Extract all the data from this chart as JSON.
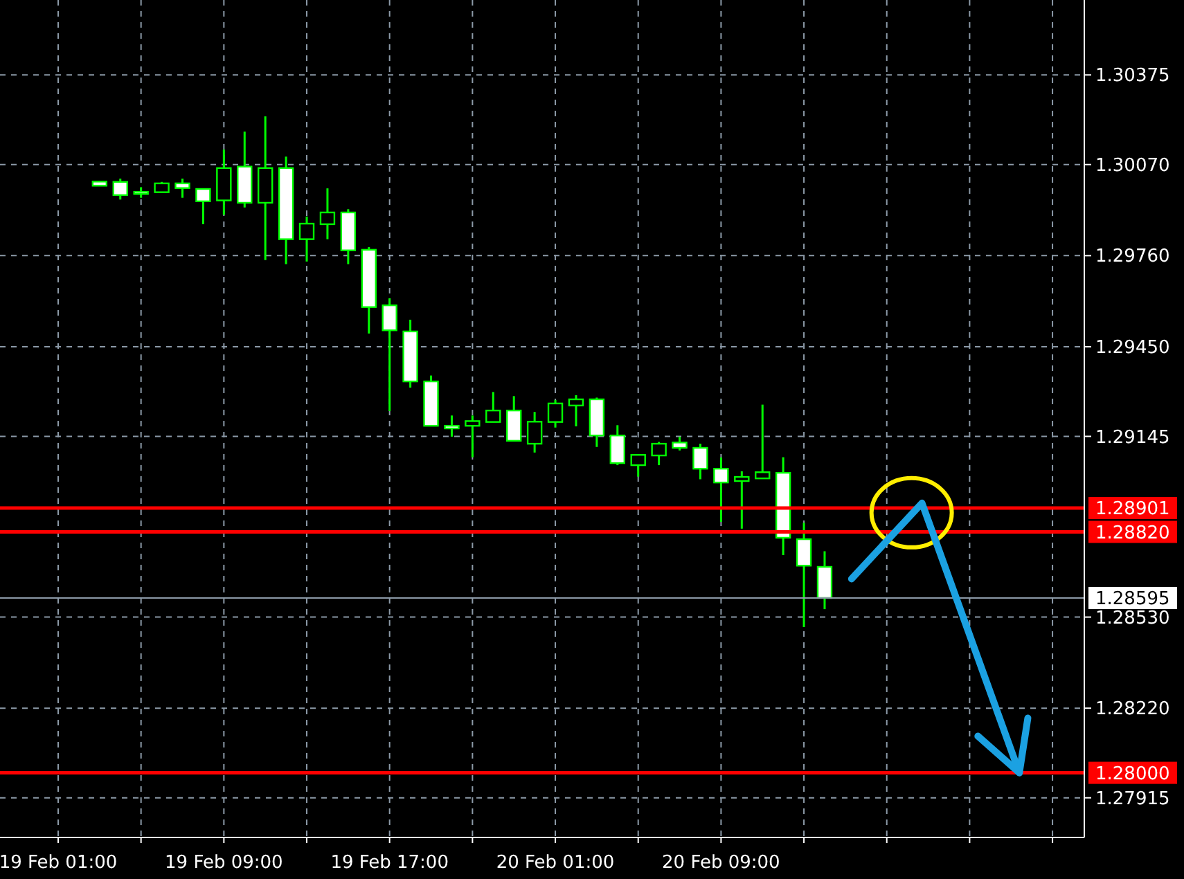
{
  "chart_data": {
    "type": "candlestick",
    "color": "#00ff00",
    "categories": [
      "19 Feb 01:00",
      null,
      null,
      null,
      null,
      null,
      null,
      null,
      "19 Feb 09:00",
      null,
      null,
      null,
      null,
      null,
      null,
      null,
      "19 Feb 17:00",
      null,
      null,
      null,
      null,
      null,
      null,
      null,
      "20 Feb 01:00",
      null,
      null,
      null,
      null,
      null,
      null,
      null,
      "20 Feb 09:00",
      null,
      null,
      null,
      null,
      null,
      null,
      null,
      null,
      null,
      null,
      null,
      null,
      null,
      null,
      null,
      null,
      null
    ],
    "ohlc": [
      null,
      null,
      [
        1.30012,
        1.30014,
        1.29998,
        1.29998
      ],
      [
        1.30011,
        1.30022,
        1.29951,
        1.29966
      ],
      [
        1.29977,
        1.29993,
        1.29957,
        1.29975
      ],
      [
        1.29976,
        1.30011,
        1.29976,
        1.30006
      ],
      [
        1.30006,
        1.30022,
        1.29957,
        1.2999
      ],
      [
        1.29987,
        1.29987,
        1.29867,
        1.29945
      ],
      [
        1.29948,
        1.30121,
        1.29899,
        1.30058
      ],
      [
        1.30063,
        1.30182,
        1.29924,
        1.2994
      ],
      [
        1.2994,
        1.30234,
        1.29745,
        1.30058
      ],
      [
        1.30058,
        1.30097,
        1.29731,
        1.29816
      ],
      [
        1.29816,
        1.29893,
        1.2974,
        1.29869
      ],
      [
        1.29867,
        1.29989,
        1.29816,
        1.29907
      ],
      [
        1.29907,
        1.29918,
        1.29731,
        1.29778
      ],
      [
        1.2978,
        1.29789,
        1.29495,
        1.29585
      ],
      [
        1.29591,
        1.29615,
        1.29231,
        1.29506
      ],
      [
        1.29502,
        1.29542,
        1.29311,
        1.29332
      ],
      [
        1.29332,
        1.29352,
        1.29181,
        1.29181
      ],
      [
        1.29181,
        1.29216,
        1.29144,
        1.29172
      ],
      [
        1.29181,
        1.29216,
        1.29074,
        1.29197
      ],
      [
        1.29194,
        1.29296,
        1.29194,
        1.29233
      ],
      [
        1.29233,
        1.29282,
        1.2913,
        1.2913
      ],
      [
        1.2912,
        1.29228,
        1.2909,
        1.29195
      ],
      [
        1.29194,
        1.29269,
        1.29175,
        1.29257
      ],
      [
        1.2925,
        1.29285,
        1.29179,
        1.29271
      ],
      [
        1.29271,
        1.29277,
        1.29109,
        1.29148
      ],
      [
        1.29148,
        1.29183,
        1.29047,
        1.29054
      ],
      [
        1.29047,
        1.29082,
        1.29008,
        1.29082
      ],
      [
        1.2908,
        1.29126,
        1.29047,
        1.2912
      ],
      [
        1.29124,
        1.29144,
        1.29097,
        1.29106
      ],
      [
        1.29106,
        1.2912,
        1.28999,
        1.29035
      ],
      [
        1.29035,
        1.29073,
        1.28854,
        1.28988
      ],
      [
        1.28993,
        1.29026,
        1.28831,
        1.29007
      ],
      [
        1.29002,
        1.29253,
        1.29002,
        1.29023
      ],
      [
        1.29021,
        1.29074,
        1.28741,
        1.288
      ],
      [
        1.28795,
        1.28851,
        1.28496,
        1.28705
      ],
      [
        1.28701,
        1.28754,
        1.28557,
        1.28595
      ],
      null,
      null,
      null,
      null,
      null,
      null,
      null,
      null,
      null,
      null,
      null,
      null
    ],
    "ylim": [
      1.2778,
      1.3063
    ],
    "yticks": [
      1.30375,
      {
        "value": 1.3007,
        "label": "1.30070"
      },
      {
        "value": 1.2976,
        "label": "1.29760"
      },
      {
        "value": 1.2945,
        "label": "1.29450"
      },
      1.29145,
      {
        "value": 1.2853,
        "label": "1.28530"
      },
      {
        "value": 1.2822,
        "label": "1.28220"
      },
      1.27915
    ],
    "grid": true,
    "ref_lines": [
      {
        "axis": "y",
        "value": 1.28901,
        "label": "1.28901",
        "color": "#ff0000"
      },
      {
        "axis": "y",
        "value": 1.2882,
        "label": "1.28820",
        "color": "#ff0000"
      },
      {
        "axis": "y",
        "value": 1.28595,
        "label": "1.28595",
        "color": "#8c9aa8"
      },
      {
        "axis": "y",
        "value": 1.28,
        "label": "1.28000",
        "color": "#ff0000"
      }
    ]
  }
}
